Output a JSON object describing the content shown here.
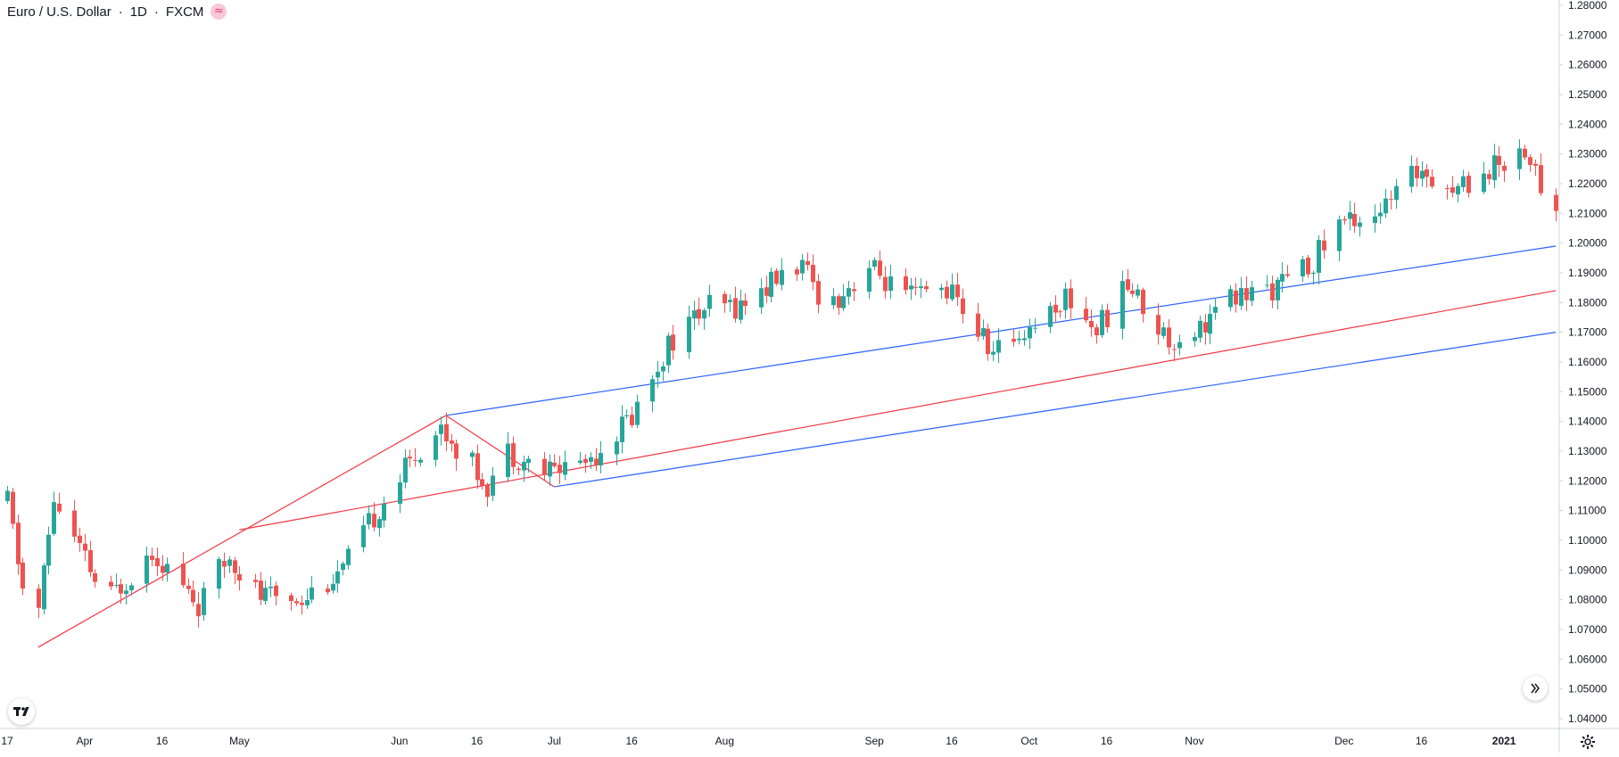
{
  "header": {
    "symbol": "Euro / U.S. Dollar",
    "interval": "1D",
    "exchange": "FXCM",
    "status_icon": "wave-icon",
    "status_glyph": "≈"
  },
  "chart_data": {
    "type": "candlestick",
    "instrument": "Euro / U.S. Dollar",
    "interval": "1D",
    "source": "FXCM",
    "colors": {
      "up": "#26a69a",
      "down": "#ef5350",
      "pitchfork_median": "#f23645",
      "pitchfork_outer": "#2962ff",
      "grid": "none"
    },
    "grid": false,
    "y_axis": {
      "position": "right",
      "ylim": [
        1.035,
        1.282
      ],
      "ticks": [
        "1.04000",
        "1.05000",
        "1.06000",
        "1.07000",
        "1.08000",
        "1.09000",
        "1.10000",
        "1.11000",
        "1.12000",
        "1.13000",
        "1.14000",
        "1.15000",
        "1.16000",
        "1.17000",
        "1.18000",
        "1.19000",
        "1.20000",
        "1.21000",
        "1.22000",
        "1.23000",
        "1.24000",
        "1.25000",
        "1.26000",
        "1.27000",
        "1.28000"
      ]
    },
    "x_axis": {
      "start": "2020-03-17",
      "end": "2021-01-11",
      "ticks": [
        {
          "date": "2020-03-17",
          "label": "17"
        },
        {
          "date": "2020-04-01",
          "label": "Apr"
        },
        {
          "date": "2020-04-16",
          "label": "16"
        },
        {
          "date": "2020-05-01",
          "label": "May"
        },
        {
          "date": "2020-06-01",
          "label": "Jun"
        },
        {
          "date": "2020-06-16",
          "label": "16"
        },
        {
          "date": "2020-07-01",
          "label": "Jul"
        },
        {
          "date": "2020-07-16",
          "label": "16"
        },
        {
          "date": "2020-08-03",
          "label": "Aug"
        },
        {
          "date": "2020-09-01",
          "label": "Sep"
        },
        {
          "date": "2020-09-16",
          "label": "16"
        },
        {
          "date": "2020-10-01",
          "label": "Oct"
        },
        {
          "date": "2020-10-16",
          "label": "16"
        },
        {
          "date": "2020-11-02",
          "label": "Nov"
        },
        {
          "date": "2020-12-01",
          "label": "Dec"
        },
        {
          "date": "2020-12-16",
          "label": "16"
        },
        {
          "date": "2021-01-01",
          "label": "2021",
          "bold": true
        }
      ]
    },
    "anchors": [
      [
        "2020-03-18",
        1.113
      ],
      [
        "2020-03-23",
        1.064
      ],
      [
        "2020-03-27",
        1.114
      ],
      [
        "2020-04-06",
        1.079
      ],
      [
        "2020-04-15",
        1.097
      ],
      [
        "2020-04-24",
        1.078
      ],
      [
        "2020-04-30",
        1.095
      ],
      [
        "2020-05-06",
        1.081
      ],
      [
        "2020-05-14",
        1.081
      ],
      [
        "2020-05-22",
        1.09
      ],
      [
        "2020-05-29",
        1.111
      ],
      [
        "2020-06-05",
        1.129
      ],
      [
        "2020-06-10",
        1.138
      ],
      [
        "2020-06-19",
        1.119
      ],
      [
        "2020-06-23",
        1.13
      ],
      [
        "2020-06-30",
        1.123
      ],
      [
        "2020-07-09",
        1.128
      ],
      [
        "2020-07-17",
        1.142
      ],
      [
        "2020-07-24",
        1.166
      ],
      [
        "2020-07-31",
        1.178
      ],
      [
        "2020-08-07",
        1.179
      ],
      [
        "2020-08-18",
        1.193
      ],
      [
        "2020-08-24",
        1.179
      ],
      [
        "2020-09-01",
        1.192
      ],
      [
        "2020-09-08",
        1.181
      ],
      [
        "2020-09-16",
        1.185
      ],
      [
        "2020-09-25",
        1.163
      ],
      [
        "2020-10-02",
        1.172
      ],
      [
        "2020-10-09",
        1.182
      ],
      [
        "2020-10-15",
        1.171
      ],
      [
        "2020-10-21",
        1.186
      ],
      [
        "2020-10-29",
        1.167
      ],
      [
        "2020-11-04",
        1.172
      ],
      [
        "2020-11-10",
        1.181
      ],
      [
        "2020-11-20",
        1.186
      ],
      [
        "2020-11-25",
        1.192
      ],
      [
        "2020-12-01",
        1.207
      ],
      [
        "2020-12-10",
        1.212
      ],
      [
        "2020-12-17",
        1.226
      ],
      [
        "2020-12-23",
        1.218
      ],
      [
        "2021-01-06",
        1.232
      ],
      [
        "2021-01-11",
        1.21
      ]
    ],
    "pitchfork": {
      "points": [
        {
          "date": "2020-03-23",
          "price": 1.064
        },
        {
          "date": "2020-06-10",
          "price": 1.142
        },
        {
          "date": "2020-07-01",
          "price": 1.118
        }
      ],
      "midpoint": {
        "date": "2020-06-20",
        "price": 1.13
      },
      "median_start": {
        "date": "2020-05-01",
        "price": 1.1035
      },
      "median_end": {
        "date": "2021-01-11",
        "price": 1.184
      },
      "upper_end": {
        "date": "2021-01-11",
        "price": 1.199
      },
      "lower_end": {
        "date": "2021-01-11",
        "price": 1.17
      }
    }
  }
}
